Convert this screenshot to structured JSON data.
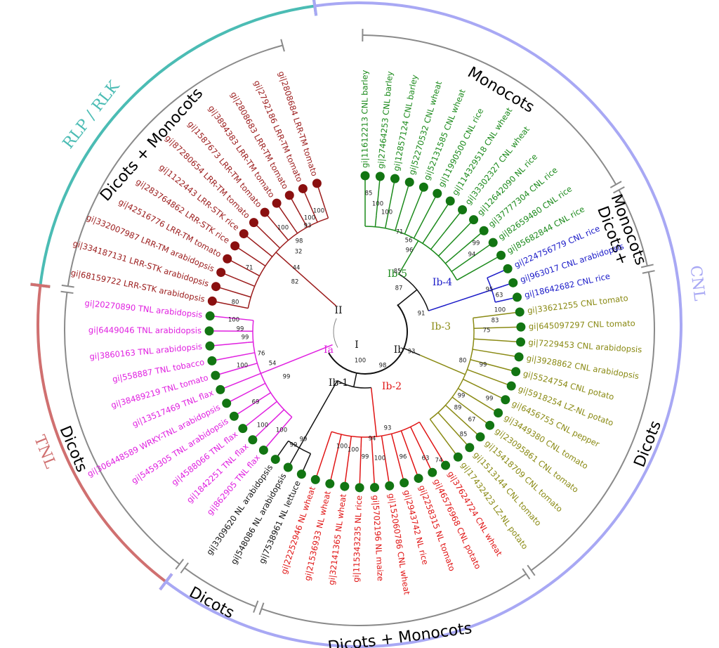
{
  "tree": {
    "groups": [
      {
        "label": "Ib-5",
        "color": "#1b8a1b",
        "label_color": "#1b8a1b",
        "dot_color": "#127512",
        "leaves": [
          "gi|11612213 CNL barley",
          "gi|27464253 CNL barley",
          "gi|12857124 CNL barley",
          "gi|52270532 CNL wheat",
          "gi|52131585 CNL wheat",
          "gi|11990500 CNL rice",
          "gi|114329518 CNL wheat",
          "gi|33302327 CNL wheat",
          "gi|12642090 NL rice",
          "gi|37777304 CNL rice",
          "gi|82659480 CNL rice",
          "gi|85682844 CNL rice"
        ]
      },
      {
        "label": "Ib-4",
        "color": "#1a1ac8",
        "label_color": "#1a1ac8",
        "dot_color": "#127512",
        "leaves": [
          "gi|224756779 CNL rice",
          "gi|963017 CNL arabidopsis",
          "gi|18642682 CNL rice"
        ]
      },
      {
        "label": "Ib-3",
        "color": "#8a8a14",
        "label_color": "#8a8a14",
        "dot_color": "#127512",
        "leaves": [
          "gi|33621255 CNL tomato",
          "gi|645097297 CNL tomato",
          "gi|7229453 CNL arabidopsis",
          "gi|3928862 CNL arabidopsis",
          "gi|5524754 CNL potato",
          "gi|5918254 LZ-NL potato",
          "gi|6456755 CNL pepper",
          "gi|3449380 CNL tomato",
          "gi|23095861 CNL tomato",
          "gi|15418709 CNL tomato",
          "gi|1513144 CNL tomato",
          "gi|17432423 LZ-NL potato"
        ]
      },
      {
        "label": "Ib-2",
        "color": "#e01414",
        "label_color": "#e01414",
        "dot_color": "#127512",
        "leaves": [
          "gi|37624724 CNL wheat",
          "gi|46576968 CNL potato",
          "gi|2258315 NL tomato",
          "gi|2943742 NL rice",
          "gi|152060786 CNL wheat",
          "gi|5702196 NL maize",
          "gi|115343235 NL rice",
          "gi|32141365 NL wheat",
          "gi|21536933 NL wheat",
          "gi|22252946 NL wheat"
        ]
      },
      {
        "label": "Ib-1",
        "color": "#111111",
        "label_color": "#111111",
        "dot_color": "#127512",
        "leaves": [
          "gi|7538961 NL lettuce",
          "gi|548086 NL arabidopsis",
          "gi|3309620 NL arabidopsis"
        ]
      },
      {
        "label": "Ia",
        "color": "#e020e0",
        "label_color": "#e020e0",
        "dot_color": "#127512",
        "leaves": [
          "gi|862905 TNL flax",
          "gi|1842251 TNL flax",
          "gi|4588066 TNL flax",
          "gi|5459305 TNL arabidopsis",
          "gi|306448589 WRKY-TNL arabidopsis",
          "gi|13517469 TNL flax",
          "gi|38489219 TNL tomato",
          "gi|558887 TNL tobacco",
          "gi|3860163 TNL arabidopsis",
          "gi|6449046 TNL arabidopsis",
          "gi|20270890 TNL arabidopsis"
        ]
      },
      {
        "label": "II",
        "color": "#9b1b1b",
        "label_color": "#111111",
        "dot_color": "#8a1010",
        "leaves": [
          "gi|68159722 LRR-STK arabidopsis",
          "gi|334187131 LRR-STK arabidopsis",
          "gi|332007987 LRR-TM arabidopsis",
          "gi|42516776 LRR-TM tomato",
          "gi|283764862 LRR-STK rice",
          "gi|1122443 LRR-STK rice",
          "gi|87280654 LRR-TM tomato",
          "gi|1587673 LRR-TM tomato",
          "gi|3894383 LRR-TM tomato",
          "gi|2808683 LRR-TM tomato",
          "gi|2792186 LRR-TM tomato",
          "gi|2808684 LRR-TM tomato"
        ]
      }
    ],
    "node_labels": [
      "I",
      "Ib"
    ],
    "bootstrap": [
      "85",
      "100",
      "100",
      "71",
      "56",
      "96",
      "85",
      "87",
      "99",
      "94",
      "95",
      "63",
      "100",
      "83",
      "75",
      "80",
      "99",
      "99",
      "99",
      "89",
      "67",
      "85",
      "91",
      "93",
      "93",
      "94",
      "100",
      "100",
      "99",
      "100",
      "96",
      "63",
      "74",
      "99",
      "99",
      "98",
      "100",
      "100",
      "99",
      "99",
      "76",
      "100",
      "54",
      "99",
      "69",
      "100",
      "100",
      "100",
      "100",
      "100",
      "93",
      "98",
      "32",
      "71",
      "44",
      "82",
      "80"
    ],
    "inner_ring": [
      {
        "lines": [
          "Monocots"
        ]
      },
      {
        "lines": [
          "Dicots+",
          "Monocots"
        ]
      },
      {
        "lines": [
          "Dicots"
        ]
      },
      {
        "lines": [
          "Dicots + Monocots"
        ]
      },
      {
        "lines": [
          "Dicots"
        ]
      },
      {
        "lines": [
          "Dicots"
        ]
      },
      {
        "lines": [
          "Dicots + Monocots"
        ]
      }
    ],
    "outer_ring": [
      {
        "label": "RLP / RLK",
        "color": "#4bbcb4"
      },
      {
        "label": "TNL",
        "color": "#d07070"
      },
      {
        "label": "CNL",
        "color": "#a8a8f4"
      }
    ]
  }
}
